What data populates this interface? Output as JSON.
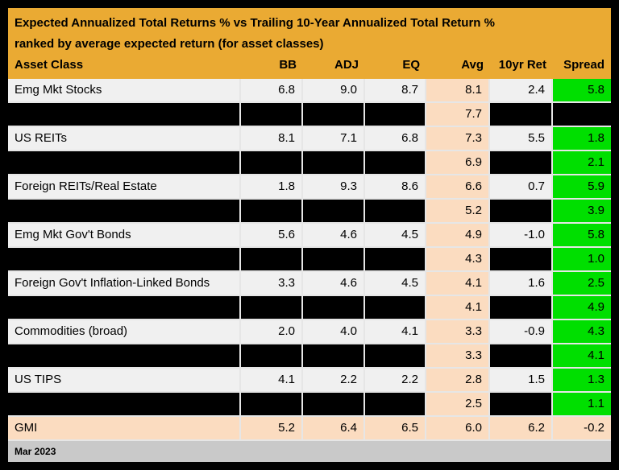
{
  "title": {
    "line1": "Expected Annualized Total Returns % vs Trailing 10-Year Annualized Total Return %",
    "line2": "ranked by average expected return (for asset classes)"
  },
  "columns": [
    "Asset Class",
    "BB",
    "ADJ",
    "EQ",
    "Avg",
    "10yr Ret",
    "Spread"
  ],
  "rows": [
    {
      "style": "normal",
      "label": "Emg Mkt Stocks",
      "values": [
        "6.8",
        "9.0",
        "8.7",
        "8.1",
        "2.4",
        "5.8"
      ]
    },
    {
      "style": "redacted",
      "label": null,
      "values": [
        null,
        null,
        null,
        "7.7",
        null,
        null
      ]
    },
    {
      "style": "normal",
      "label": "US REITs",
      "values": [
        "8.1",
        "7.1",
        "6.8",
        "7.3",
        "5.5",
        "1.8"
      ]
    },
    {
      "style": "redacted",
      "label": null,
      "values": [
        null,
        null,
        null,
        "6.9",
        null,
        "2.1"
      ]
    },
    {
      "style": "normal",
      "label": "Foreign REITs/Real Estate",
      "values": [
        "1.8",
        "9.3",
        "8.6",
        "6.6",
        "0.7",
        "5.9"
      ]
    },
    {
      "style": "redacted",
      "label": null,
      "values": [
        null,
        null,
        null,
        "5.2",
        null,
        "3.9"
      ]
    },
    {
      "style": "normal",
      "label": "Emg Mkt Gov't Bonds",
      "values": [
        "5.6",
        "4.6",
        "4.5",
        "4.9",
        "-1.0",
        "5.8"
      ]
    },
    {
      "style": "redacted",
      "label": null,
      "values": [
        null,
        null,
        null,
        "4.3",
        null,
        "1.0"
      ]
    },
    {
      "style": "normal",
      "label": "Foreign Gov't Inflation-Linked Bonds",
      "values": [
        "3.3",
        "4.6",
        "4.5",
        "4.1",
        "1.6",
        "2.5"
      ]
    },
    {
      "style": "redacted",
      "label": null,
      "values": [
        null,
        null,
        null,
        "4.1",
        null,
        "4.9"
      ]
    },
    {
      "style": "normal",
      "label": "Commodities (broad)",
      "values": [
        "2.0",
        "4.0",
        "4.1",
        "3.3",
        "-0.9",
        "4.3"
      ]
    },
    {
      "style": "redacted",
      "label": null,
      "values": [
        null,
        null,
        null,
        "3.3",
        null,
        "4.1"
      ]
    },
    {
      "style": "normal",
      "label": "US TIPS",
      "values": [
        "4.1",
        "2.2",
        "2.2",
        "2.8",
        "1.5",
        "1.3"
      ]
    },
    {
      "style": "redacted",
      "label": null,
      "values": [
        null,
        null,
        null,
        "2.5",
        null,
        "1.1"
      ]
    },
    {
      "style": "total",
      "label": "GMI",
      "values": [
        "5.2",
        "6.4",
        "6.5",
        "6.0",
        "6.2",
        "-0.2"
      ]
    }
  ],
  "footer": {
    "date": "Mar 2023"
  },
  "colors": {
    "header_bg": "#EAAA33",
    "row_bg": "#F0F0F0",
    "redacted_bg": "#000000",
    "avg_col_bg": "#FBDCC0",
    "spread_positive_bg": "#00DF00",
    "total_row_bg": "#FBDCC0",
    "footer_bg": "#C9C9C9",
    "grid_line": "#E6E6E6",
    "text": "#000000"
  },
  "chart_data": {
    "type": "table",
    "title": "Expected Annualized Total Returns % vs Trailing 10-Year Annualized Total Return % ranked by average expected return (for asset classes)",
    "columns": [
      "Asset Class",
      "BB",
      "ADJ",
      "EQ",
      "Avg",
      "10yr Ret",
      "Spread"
    ],
    "rows": [
      [
        "Emg Mkt Stocks",
        6.8,
        9.0,
        8.7,
        8.1,
        2.4,
        5.8
      ],
      [
        null,
        null,
        null,
        null,
        7.7,
        null,
        null
      ],
      [
        "US REITs",
        8.1,
        7.1,
        6.8,
        7.3,
        5.5,
        1.8
      ],
      [
        null,
        null,
        null,
        null,
        6.9,
        null,
        2.1
      ],
      [
        "Foreign REITs/Real Estate",
        1.8,
        9.3,
        8.6,
        6.6,
        0.7,
        5.9
      ],
      [
        null,
        null,
        null,
        null,
        5.2,
        null,
        3.9
      ],
      [
        "Emg Mkt Gov't Bonds",
        5.6,
        4.6,
        4.5,
        4.9,
        -1.0,
        5.8
      ],
      [
        null,
        null,
        null,
        null,
        4.3,
        null,
        1.0
      ],
      [
        "Foreign Gov't Inflation-Linked Bonds",
        3.3,
        4.6,
        4.5,
        4.1,
        1.6,
        2.5
      ],
      [
        null,
        null,
        null,
        null,
        4.1,
        null,
        4.9
      ],
      [
        "Commodities (broad)",
        2.0,
        4.0,
        4.1,
        3.3,
        -0.9,
        4.3
      ],
      [
        null,
        null,
        null,
        null,
        3.3,
        null,
        4.1
      ],
      [
        "US TIPS",
        4.1,
        2.2,
        2.2,
        2.8,
        1.5,
        1.3
      ],
      [
        null,
        null,
        null,
        null,
        2.5,
        null,
        1.1
      ],
      [
        "GMI",
        5.2,
        6.4,
        6.5,
        6.0,
        6.2,
        -0.2
      ]
    ],
    "notes": "null cells are blacked-out/redacted in the image; Avg column stays visible on all rows; Spread cells are bright green except GMI row",
    "as_of": "Mar 2023"
  }
}
